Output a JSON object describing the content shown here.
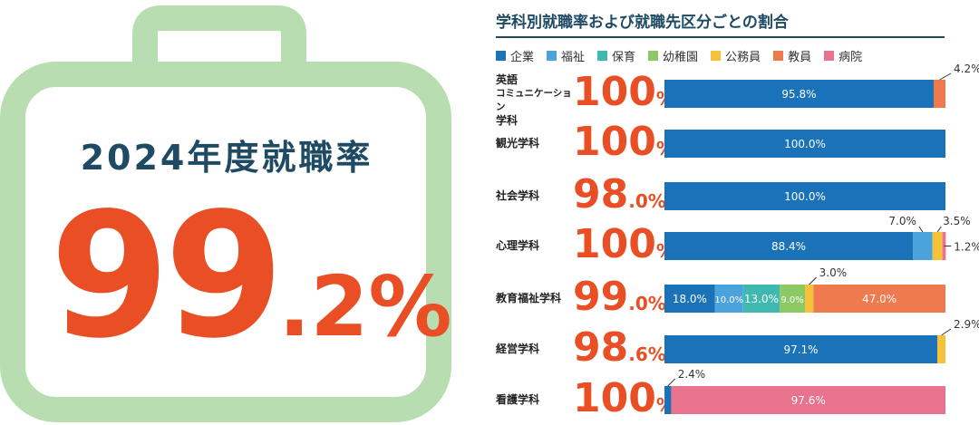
{
  "summary": {
    "title": "2024年度就職率",
    "rate_int": "99",
    "rate_dec": ".2%"
  },
  "chart_data": {
    "type": "bar",
    "title": "学科別就職率および就職先区分ごとの割合",
    "orientation": "horizontal",
    "stacked": true,
    "legend": [
      {
        "name": "企業",
        "color": "#1a72b8"
      },
      {
        "name": "福祉",
        "color": "#4aa3dc"
      },
      {
        "name": "保育",
        "color": "#3fb8b0"
      },
      {
        "name": "幼稚園",
        "color": "#8cc864"
      },
      {
        "name": "公務員",
        "color": "#f5c23a"
      },
      {
        "name": "教員",
        "color": "#ef7a4e"
      },
      {
        "name": "病院",
        "color": "#e9728e"
      }
    ],
    "rows": [
      {
        "label": [
          "英語",
          "コミュニケーション",
          "学科"
        ],
        "rate_int": "100",
        "rate_dec": "%",
        "segments": [
          {
            "cat": "企業",
            "value": 95.8,
            "label": "95.8%",
            "pos": "in"
          },
          {
            "cat": "教員",
            "value": 4.2,
            "label": "4.2%",
            "pos": "out"
          }
        ]
      },
      {
        "label": [
          "観光学科"
        ],
        "rate_int": "100",
        "rate_dec": "%",
        "segments": [
          {
            "cat": "企業",
            "value": 100.0,
            "label": "100.0%",
            "pos": "in"
          }
        ]
      },
      {
        "label": [
          "社会学科"
        ],
        "rate_int": "98",
        "rate_dec": ".0%",
        "segments": [
          {
            "cat": "企業",
            "value": 100.0,
            "label": "100.0%",
            "pos": "in"
          }
        ]
      },
      {
        "label": [
          "心理学科"
        ],
        "rate_int": "100",
        "rate_dec": "%",
        "segments": [
          {
            "cat": "企業",
            "value": 88.4,
            "label": "88.4%",
            "pos": "in"
          },
          {
            "cat": "福祉",
            "value": 7.0,
            "label": "7.0%",
            "pos": "out"
          },
          {
            "cat": "公務員",
            "value": 3.5,
            "label": "3.5%",
            "pos": "out"
          },
          {
            "cat": "病院",
            "value": 1.2,
            "label": "1.2%",
            "pos": "out"
          }
        ]
      },
      {
        "label": [
          "教育福祉学科"
        ],
        "rate_int": "99",
        "rate_dec": ".0%",
        "segments": [
          {
            "cat": "企業",
            "value": 18.0,
            "label": "18.0%",
            "pos": "in"
          },
          {
            "cat": "福祉",
            "value": 10.0,
            "label": "10.0%",
            "pos": "in"
          },
          {
            "cat": "保育",
            "value": 13.0,
            "label": "13.0%",
            "pos": "in"
          },
          {
            "cat": "幼稚園",
            "value": 9.0,
            "label": "9.0%",
            "pos": "in"
          },
          {
            "cat": "公務員",
            "value": 3.0,
            "label": "3.0%",
            "pos": "out"
          },
          {
            "cat": "教員",
            "value": 47.0,
            "label": "47.0%",
            "pos": "in"
          }
        ]
      },
      {
        "label": [
          "経営学科"
        ],
        "rate_int": "98",
        "rate_dec": ".6%",
        "segments": [
          {
            "cat": "企業",
            "value": 97.1,
            "label": "97.1%",
            "pos": "in"
          },
          {
            "cat": "公務員",
            "value": 2.9,
            "label": "2.9%",
            "pos": "out"
          }
        ]
      },
      {
        "label": [
          "看護学科"
        ],
        "rate_int": "100",
        "rate_dec": "%",
        "segments": [
          {
            "cat": "企業",
            "value": 2.4,
            "label": "2.4%",
            "pos": "out"
          },
          {
            "cat": "病院",
            "value": 97.6,
            "label": "97.6%",
            "pos": "in"
          }
        ]
      }
    ]
  }
}
